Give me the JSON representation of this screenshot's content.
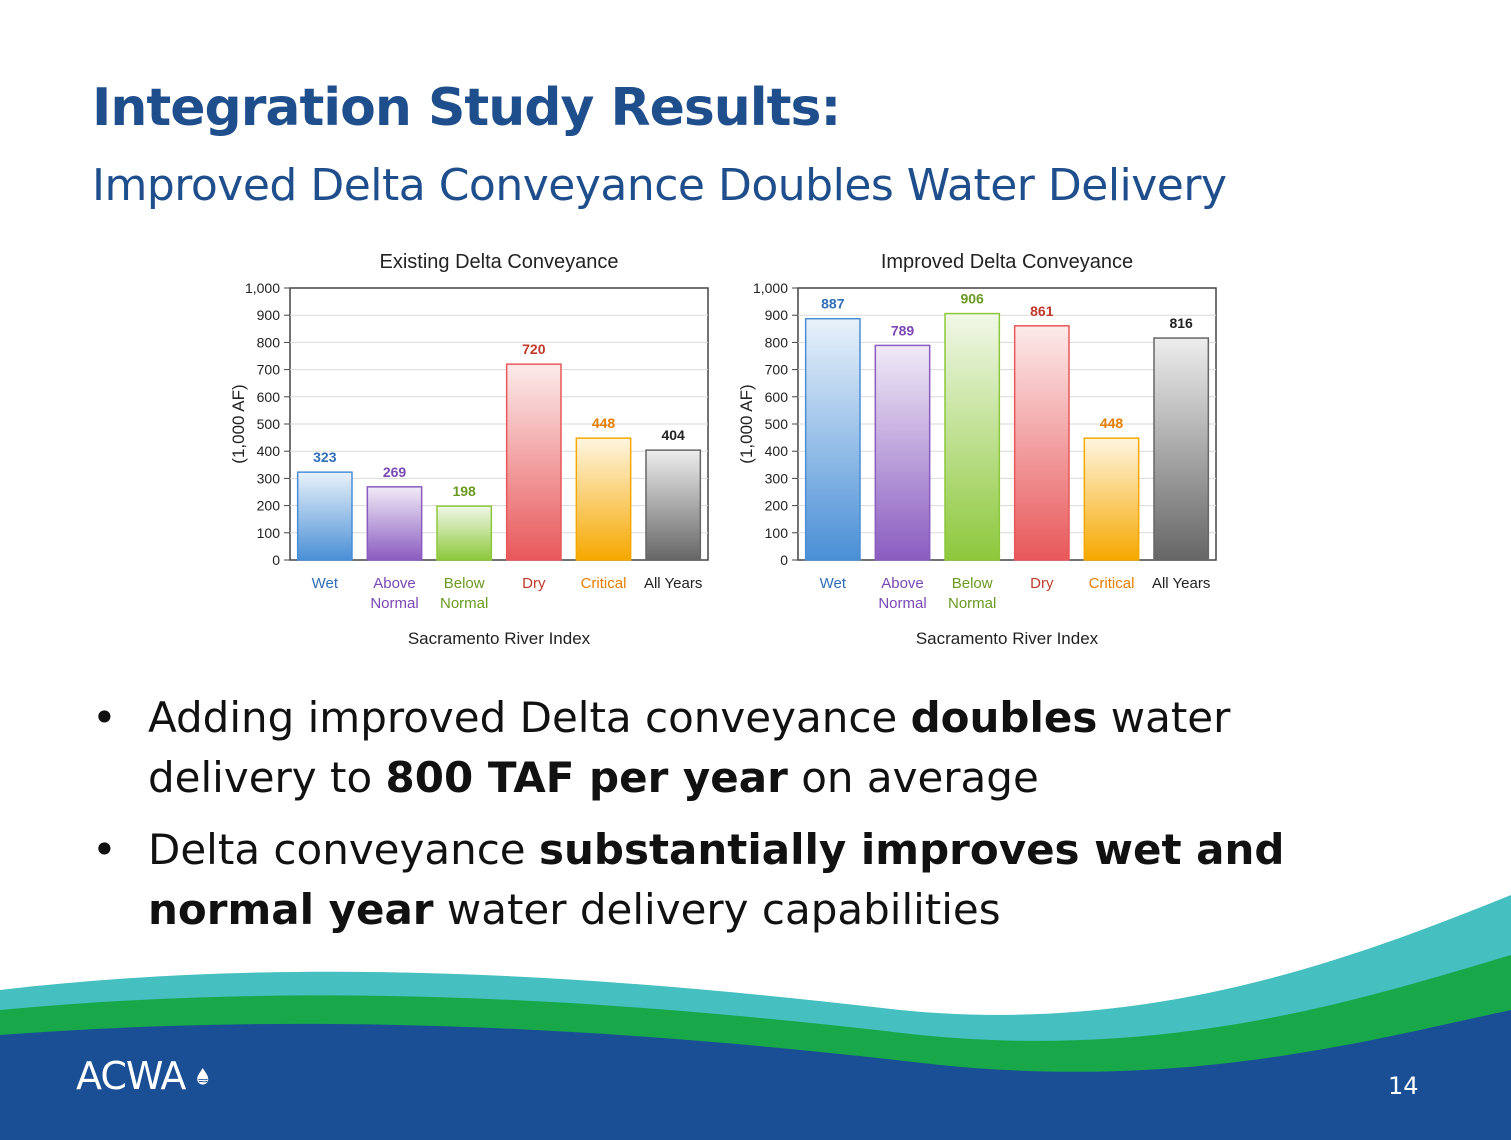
{
  "slide": {
    "title": "Integration Study Results:",
    "subtitle": "Improved Delta Conveyance Doubles Water Delivery",
    "page_number": "14",
    "logo_text": "ACWA",
    "colors": {
      "title": "#1f4e8c",
      "wave_teal": "#45bfbf",
      "wave_green": "#18a84a",
      "wave_navy": "#1a4f95"
    }
  },
  "bullets": [
    {
      "segments": [
        {
          "text": "Adding improved Delta conveyance ",
          "bold": false
        },
        {
          "text": "doubles",
          "bold": true
        },
        {
          "text": " water delivery to ",
          "bold": false
        },
        {
          "text": "800 TAF per year",
          "bold": true
        },
        {
          "text": " on average",
          "bold": false
        }
      ]
    },
    {
      "segments": [
        {
          "text": "Delta conveyance ",
          "bold": false
        },
        {
          "text": "substantially improves wet and normal year",
          "bold": true
        },
        {
          "text": " water delivery capabilities",
          "bold": false
        }
      ]
    }
  ],
  "chart_data": [
    {
      "type": "bar",
      "title": "Existing Delta Conveyance",
      "xlabel": "Sacramento River Index",
      "ylabel": "(1,000 AF)",
      "ylim": [
        0,
        1000
      ],
      "yticks": [
        "0",
        "100",
        "200",
        "300",
        "400",
        "500",
        "600",
        "700",
        "800",
        "900",
        "1,000"
      ],
      "grid": true,
      "categories": [
        [
          "Wet"
        ],
        [
          "Above",
          "Normal"
        ],
        [
          "Below",
          "Normal"
        ],
        [
          "Dry"
        ],
        [
          "Critical"
        ],
        [
          "All Years"
        ]
      ],
      "values": [
        323,
        269,
        198,
        720,
        448,
        404
      ],
      "labels": [
        "323",
        "269",
        "198",
        "720",
        "448",
        "404"
      ],
      "colors": [
        "#4a8fd6",
        "#8a5cc0",
        "#8dc83c",
        "#e8585a",
        "#f6a800",
        "#666666"
      ],
      "label_colors": [
        "#2f6fb8",
        "#7a47b5",
        "#6a9a22",
        "#c0392b",
        "#e67e00",
        "#222222"
      ]
    },
    {
      "type": "bar",
      "title": "Improved Delta Conveyance",
      "xlabel": "Sacramento River Index",
      "ylabel": "(1,000 AF)",
      "ylim": [
        0,
        1000
      ],
      "yticks": [
        "0",
        "100",
        "200",
        "300",
        "400",
        "500",
        "600",
        "700",
        "800",
        "900",
        "1,000"
      ],
      "grid": true,
      "categories": [
        [
          "Wet"
        ],
        [
          "Above",
          "Normal"
        ],
        [
          "Below",
          "Normal"
        ],
        [
          "Dry"
        ],
        [
          "Critical"
        ],
        [
          "All Years"
        ]
      ],
      "values": [
        887,
        789,
        906,
        861,
        448,
        816
      ],
      "labels": [
        "887",
        "789",
        "906",
        "861",
        "448",
        "816"
      ],
      "colors": [
        "#4a8fd6",
        "#8a5cc0",
        "#8dc83c",
        "#e8585a",
        "#f6a800",
        "#666666"
      ],
      "label_colors": [
        "#2f6fb8",
        "#7a47b5",
        "#6a9a22",
        "#c0392b",
        "#e67e00",
        "#222222"
      ]
    }
  ]
}
